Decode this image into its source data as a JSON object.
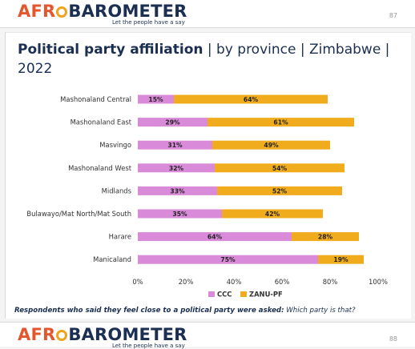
{
  "header": {
    "logo_parts": [
      "AFR",
      "BAROMETER"
    ],
    "tagline": "Let the people have a say",
    "page_number": "87"
  },
  "footer": {
    "logo_parts": [
      "AFR",
      "BAROMETER"
    ],
    "tagline": "Let the people have a say",
    "page_number": "88"
  },
  "title": {
    "bold": "Political party affiliation",
    "rest": " | by province | Zimbabwe | 2022"
  },
  "note": {
    "bold": "Respondents who said they feel close to a political party were asked:",
    "rest": " Which party is that?"
  },
  "colors": {
    "ccc": "#d98ad9",
    "zanu": "#f0ac1c"
  },
  "chart_data": {
    "type": "bar",
    "orientation": "horizontal",
    "stacked": true,
    "categories": [
      "Mashonaland Central",
      "Mashonaland East",
      "Masvingo",
      "Mashonaland West",
      "Midlands",
      "Bulawayo/Mat North/Mat South",
      "Harare",
      "Manicaland"
    ],
    "series": [
      {
        "name": "CCC",
        "values": [
          15,
          29,
          31,
          32,
          33,
          35,
          64,
          75
        ]
      },
      {
        "name": "ZANU-PF",
        "values": [
          64,
          61,
          49,
          54,
          52,
          42,
          28,
          19
        ]
      }
    ],
    "xlim": [
      0,
      100
    ],
    "x_ticks": [
      "0%",
      "20%",
      "40%",
      "60%",
      "80%",
      "100%"
    ],
    "value_suffix": "%",
    "legend_position": "bottom",
    "grid": false
  }
}
